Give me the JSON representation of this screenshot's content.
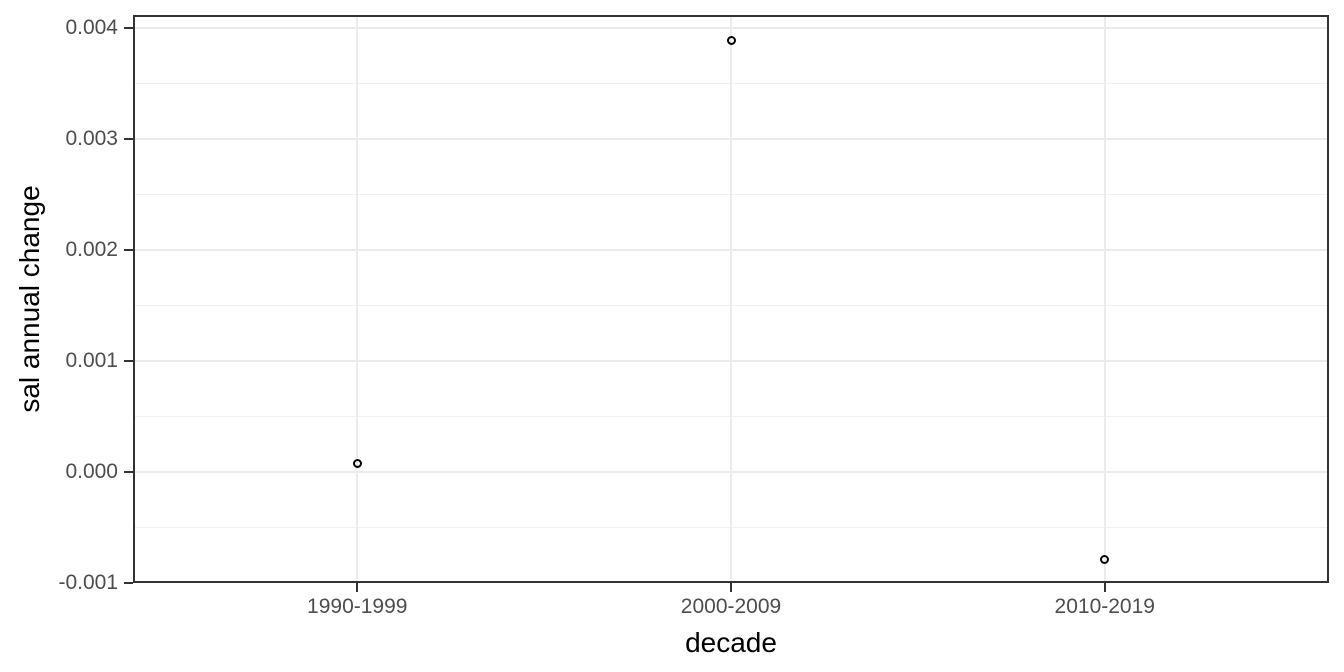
{
  "chart_data": {
    "type": "scatter",
    "title": "",
    "xlabel": "decade",
    "ylabel": "sal annual change",
    "categories": [
      "1990-1999",
      "2000-2009",
      "2010-2019"
    ],
    "values": [
      7.5e-05,
      0.00389,
      -0.00079
    ],
    "y_ticks": [
      {
        "value": -0.001,
        "label": "-0.001"
      },
      {
        "value": 0.0,
        "label": "0.000"
      },
      {
        "value": 0.001,
        "label": "0.001"
      },
      {
        "value": 0.002,
        "label": "0.002"
      },
      {
        "value": 0.003,
        "label": "0.003"
      },
      {
        "value": 0.004,
        "label": "0.004"
      }
    ],
    "ylim": [
      -0.001,
      0.00412
    ],
    "legend": "none",
    "marker": "open-circle",
    "grid": {
      "horizontal_major": true,
      "horizontal_minor": true,
      "vertical_major": true,
      "vertical_minor": false
    },
    "theme": {
      "background": "#ffffff",
      "panel_border": "#333333",
      "grid_major": "#ebebeb",
      "grid_minor": "#f0f0f0",
      "tick_color": "#333333",
      "tick_label_color": "#4d4d4d",
      "axis_title_color": "#000000",
      "point_color": "#000000"
    }
  }
}
